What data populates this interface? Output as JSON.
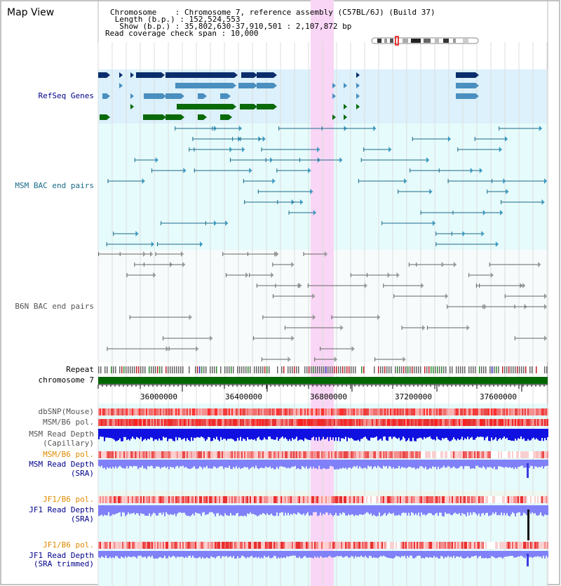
{
  "app": {
    "title": "Map View"
  },
  "info": {
    "chromosome_key": "Chromosome    : ",
    "chromosome_val": "Chromosome 7, reference assembly (C57BL/6J) (Build 37)",
    "length_key": " Length (b.p.) : ",
    "length_val": "152,524,553",
    "show_key": "  Show (b.p.) : ",
    "show_val": "35,802,630-37,910,501 : 2,107,872 bp",
    "coverage_key": "Read coverage check span : ",
    "coverage_val": "10,000"
  },
  "tracks": {
    "refseq": "RefSeq Genes",
    "msm_bac": "MSM BAC end pairs",
    "b6n_bac": "B6N BAC end pairs",
    "repeat": "Repeat",
    "chromosome": "chromosome 7",
    "dbsnp": "dbSNP(Mouse)",
    "msm_b6_pol": "MSM/B6 pol.",
    "msm_depth_cap_1": "MSM Read Depth",
    "msm_depth_cap_2": "(Capillary)",
    "msm_b6_pol_2": "MSM/B6 pol.",
    "msm_depth_sra_1": "MSM Read Depth",
    "msm_depth_sra_2": "(SRA)",
    "jf1_b6_pol": "JF1/B6 pol.",
    "jf1_depth_sra_1": "JF1 Read Depth",
    "jf1_depth_sra_2": "(SRA)",
    "jf1_b6_pol_2": "JF1/B6 pol.",
    "jf1_depth_trim_1": "JF1 Read Depth",
    "jf1_depth_trim_2": "(SRA trimmed)"
  },
  "axis": {
    "ticks": [
      "36000000",
      "36400000",
      "36800000",
      "37200000",
      "37600000"
    ]
  },
  "colors": {
    "refseq_bg": "#dcf1fb",
    "bac_bg": "#e6fbfb",
    "highlight": "#f9d6f5",
    "gene_dark": "#0b2d6b",
    "gene_mid": "#4a8fbf",
    "gene_green": "#0a6a0a",
    "bac_line": "#1a6a8a",
    "b6n_line": "#666666",
    "depth_blue": "#1010e0",
    "depth_light": "#8080f8",
    "chromosome": "#006600"
  }
}
